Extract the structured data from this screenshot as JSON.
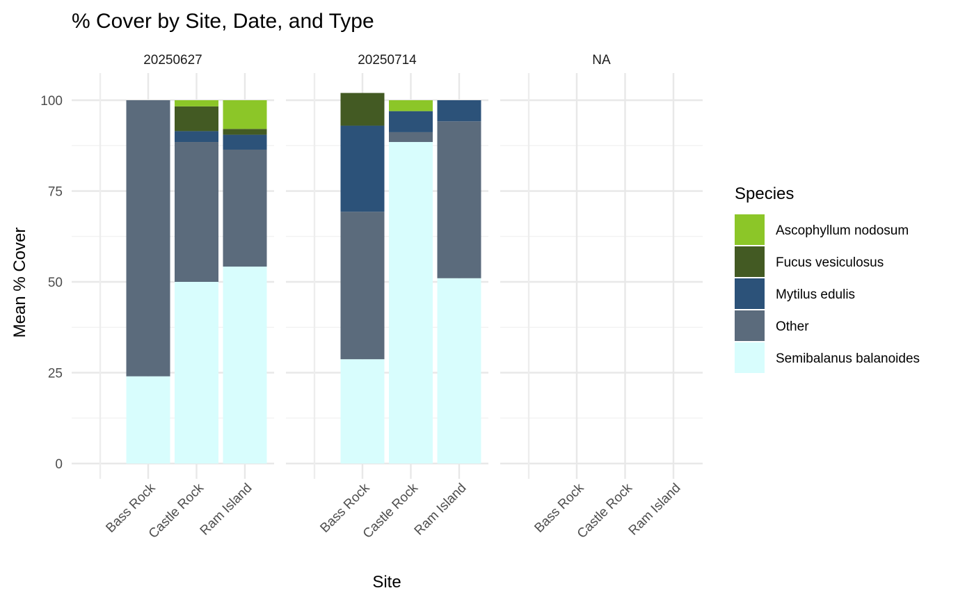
{
  "chart_data": {
    "type": "bar",
    "stacked": true,
    "title": "% Cover by Site, Date, and Type",
    "xlabel": "Site",
    "ylabel": "Mean % Cover",
    "ylim": [
      0,
      105
    ],
    "yticks": [
      0,
      25,
      50,
      75,
      100
    ],
    "categories": [
      "Bass Rock",
      "Castle Rock",
      "Ram Island"
    ],
    "legend": {
      "title": "Species",
      "position": "right"
    },
    "grid": true,
    "series_order": [
      "Semibalanus balanoides",
      "Other",
      "Mytilus edulis",
      "Fucus vesiculosus",
      "Ascophyllum nodosum"
    ],
    "legend_order": [
      "Ascophyllum nodosum",
      "Fucus vesiculosus",
      "Mytilus edulis",
      "Other",
      "Semibalanus balanoides"
    ],
    "colors": {
      "Ascophyllum nodosum": "#8CC628",
      "Fucus vesiculosus": "#435A23",
      "Mytilus edulis": "#2C5279",
      "Other": "#5B6B7C",
      "Semibalanus balanoides": "#D8FDFD"
    },
    "panels": [
      {
        "label": "20250627",
        "bars": [
          {
            "site": "Bass Rock",
            "values": {
              "Semibalanus balanoides": 24,
              "Other": 76,
              "Mytilus edulis": 0,
              "Fucus vesiculosus": 0,
              "Ascophyllum nodosum": 0
            }
          },
          {
            "site": "Castle Rock",
            "values": {
              "Semibalanus balanoides": 50,
              "Other": 38.5,
              "Mytilus edulis": 3,
              "Fucus vesiculosus": 6.8,
              "Ascophyllum nodosum": 1.7
            }
          },
          {
            "site": "Ram Island",
            "values": {
              "Semibalanus balanoides": 54.2,
              "Other": 32.2,
              "Mytilus edulis": 4.1,
              "Fucus vesiculosus": 1.6,
              "Ascophyllum nodosum": 7.9
            }
          }
        ]
      },
      {
        "label": "20250714",
        "bars": [
          {
            "site": "Bass Rock",
            "values": {
              "Semibalanus balanoides": 28.7,
              "Other": 40.6,
              "Mytilus edulis": 23.7,
              "Fucus vesiculosus": 9,
              "Ascophyllum nodosum": 0
            }
          },
          {
            "site": "Castle Rock",
            "values": {
              "Semibalanus balanoides": 88.5,
              "Other": 2.7,
              "Mytilus edulis": 5.8,
              "Fucus vesiculosus": 0,
              "Ascophyllum nodosum": 3
            }
          },
          {
            "site": "Ram Island",
            "values": {
              "Semibalanus balanoides": 51,
              "Other": 43.2,
              "Mytilus edulis": 5.8,
              "Fucus vesiculosus": 0,
              "Ascophyllum nodosum": 0
            }
          }
        ]
      },
      {
        "label": "NA",
        "bars": []
      }
    ]
  }
}
